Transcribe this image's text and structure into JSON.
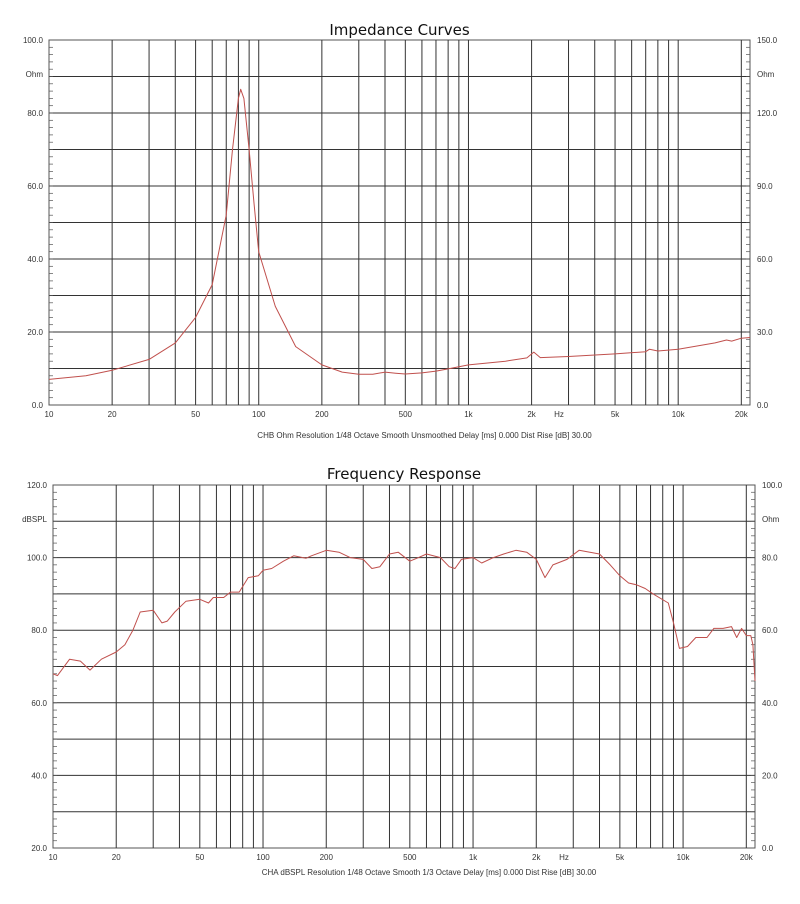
{
  "chart_data": [
    {
      "type": "line",
      "title": "Impedance Curves",
      "xlabel": "Hz",
      "ylabel": "Ohm",
      "ylabel_right": "Ohm",
      "xscale": "log",
      "xlim": [
        10,
        22000
      ],
      "ylim": [
        0,
        100
      ],
      "ylim_right": [
        0,
        150
      ],
      "grid": true,
      "x_ticks": [
        {
          "v": 10,
          "l": "10"
        },
        {
          "v": 20,
          "l": "20"
        },
        {
          "v": 50,
          "l": "50"
        },
        {
          "v": 100,
          "l": "100"
        },
        {
          "v": 200,
          "l": "200"
        },
        {
          "v": 500,
          "l": "500"
        },
        {
          "v": 1000,
          "l": "1k"
        },
        {
          "v": 2000,
          "l": "2k"
        },
        {
          "v": 5000,
          "l": "5k"
        },
        {
          "v": 10000,
          "l": "10k"
        },
        {
          "v": 20000,
          "l": "20k"
        }
      ],
      "y_ticks": [
        "0.0",
        "20.0",
        "40.0",
        "60.0",
        "80.0",
        "100.0"
      ],
      "y_ticks_right": [
        "0.0",
        "30.0",
        "60.0",
        "90.0",
        "120.0",
        "150.0"
      ],
      "caption": "CHB Ohm Resolution 1/48 Octave Smooth Unsmoothed Delay [ms] 0.000 Dist Rise [dB] 30.00",
      "line_color": "#c0504d",
      "series": [
        {
          "name": "Impedance",
          "x": [
            10,
            15,
            20,
            30,
            40,
            50,
            60,
            70,
            75,
            80,
            82,
            85,
            90,
            95,
            100,
            120,
            150,
            200,
            250,
            300,
            350,
            400,
            450,
            500,
            600,
            700,
            800,
            900,
            1000,
            1500,
            1900,
            2050,
            2200,
            3000,
            5000,
            7000,
            7300,
            8000,
            10000,
            15000,
            17000,
            18000,
            20000,
            22000
          ],
          "y": [
            7,
            8,
            9.5,
            12.5,
            17,
            24,
            33,
            52,
            70,
            84,
            86.5,
            84,
            70,
            55,
            42,
            27,
            16,
            11,
            9,
            8.4,
            8.4,
            9,
            8.7,
            8.5,
            8.8,
            9.3,
            9.9,
            10.5,
            11,
            12,
            12.9,
            14.5,
            13,
            13.3,
            14,
            14.6,
            15.3,
            14.8,
            15.3,
            17,
            17.8,
            17.5,
            18.3,
            18.5
          ]
        }
      ]
    },
    {
      "type": "line",
      "title": "Frequency Response",
      "xlabel": "Hz",
      "ylabel": "dBSPL",
      "ylabel_right": "Ohm",
      "xscale": "log",
      "xlim": [
        10,
        22000
      ],
      "ylim": [
        20,
        120
      ],
      "ylim_right": [
        0,
        100
      ],
      "grid": true,
      "x_ticks": [
        {
          "v": 10,
          "l": "10"
        },
        {
          "v": 20,
          "l": "20"
        },
        {
          "v": 50,
          "l": "50"
        },
        {
          "v": 100,
          "l": "100"
        },
        {
          "v": 200,
          "l": "200"
        },
        {
          "v": 500,
          "l": "500"
        },
        {
          "v": 1000,
          "l": "1k"
        },
        {
          "v": 2000,
          "l": "2k"
        },
        {
          "v": 5000,
          "l": "5k"
        },
        {
          "v": 10000,
          "l": "10k"
        },
        {
          "v": 20000,
          "l": "20k"
        }
      ],
      "y_ticks": [
        "20.0",
        "40.0",
        "60.0",
        "80.0",
        "100.0",
        "120.0"
      ],
      "y_ticks_right": [
        "0.0",
        "20.0",
        "40.0",
        "60.0",
        "80.0",
        "100.0"
      ],
      "caption": "CHA dBSPL Resolution 1/48 Octave Smooth 1/3 Octave Delay [ms] 0.000 Dist Rise [dB] 30.00",
      "line_color": "#c0504d",
      "series": [
        {
          "name": "SPL",
          "x": [
            10,
            10.5,
            12,
            13.5,
            15,
            17,
            20,
            22,
            24,
            26,
            30,
            33,
            35,
            38,
            43,
            50,
            55,
            58,
            65,
            70,
            77,
            85,
            95,
            100,
            110,
            125,
            140,
            160,
            170,
            200,
            230,
            260,
            300,
            330,
            360,
            400,
            440,
            500,
            550,
            600,
            700,
            770,
            820,
            880,
            1000,
            1100,
            1250,
            1400,
            1600,
            1800,
            2000,
            2200,
            2400,
            2800,
            3200,
            3600,
            4000,
            4500,
            5000,
            5500,
            6000,
            6600,
            7200,
            8500,
            9000,
            9600,
            10500,
            11500,
            13000,
            14000,
            15500,
            17000,
            18000,
            19000,
            20000,
            21000,
            21500,
            22000
          ],
          "y": [
            68,
            67.5,
            72,
            71.5,
            69,
            72,
            74,
            76,
            80,
            85,
            85.5,
            82,
            82.5,
            85,
            88,
            88.5,
            87.5,
            89,
            89,
            90.5,
            90.5,
            94.5,
            95,
            96.5,
            97,
            99,
            100.5,
            99.8,
            100.5,
            102,
            101.5,
            100,
            99.5,
            97,
            97.5,
            101,
            101.5,
            99,
            100,
            101,
            100,
            97.5,
            97,
            99.5,
            100,
            98.5,
            100,
            101,
            102,
            101.5,
            99.5,
            94.5,
            98,
            99.5,
            102,
            101.5,
            101,
            98,
            95,
            93,
            92.5,
            91.5,
            90,
            87.5,
            82,
            75,
            75.5,
            78,
            78,
            80.5,
            80.5,
            81,
            78,
            80.5,
            78.5,
            78.5,
            76,
            66
          ]
        }
      ]
    }
  ]
}
